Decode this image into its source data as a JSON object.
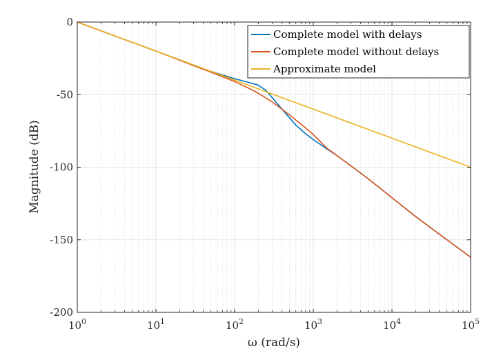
{
  "chart_data": {
    "type": "line",
    "xscale": "log",
    "xlim": [
      1,
      100000
    ],
    "ylim": [
      -200,
      0
    ],
    "grid": true,
    "minor_grid": true,
    "legend_position": "top-right",
    "xlabel": "ω (rad/s)",
    "ylabel": "Magnitude (dB)",
    "x_ticks": [
      {
        "value": 1,
        "base": "10",
        "exp": "0"
      },
      {
        "value": 10,
        "base": "10",
        "exp": "1"
      },
      {
        "value": 100,
        "base": "10",
        "exp": "2"
      },
      {
        "value": 1000,
        "base": "10",
        "exp": "3"
      },
      {
        "value": 10000,
        "base": "10",
        "exp": "4"
      },
      {
        "value": 100000,
        "base": "10",
        "exp": "5"
      }
    ],
    "y_ticks": [
      {
        "value": 0,
        "label": "0"
      },
      {
        "value": -50,
        "label": "-50"
      },
      {
        "value": -100,
        "label": "-100"
      },
      {
        "value": -150,
        "label": "-150"
      },
      {
        "value": -200,
        "label": "-200"
      }
    ],
    "series": [
      {
        "name": "Complete model with delays",
        "color": "#0072BD",
        "x": [
          1,
          10,
          50,
          100,
          150,
          200,
          250,
          300,
          400,
          500,
          600,
          800,
          1000,
          1500,
          2000,
          3000,
          5000,
          10000,
          20000,
          50000,
          100000
        ],
        "y": [
          0,
          -20,
          -34,
          -39,
          -41.5,
          -43.5,
          -47,
          -52,
          -60,
          -66,
          -71,
          -77,
          -81,
          -87.5,
          -92,
          -99,
          -108,
          -121,
          -134,
          -150,
          -162
        ]
      },
      {
        "name": "Complete model without delays",
        "color": "#D95319",
        "x": [
          1,
          10,
          30,
          50,
          100,
          150,
          200,
          300,
          500,
          800,
          1000,
          1500,
          2000,
          3000,
          5000,
          10000,
          20000,
          50000,
          100000
        ],
        "y": [
          0,
          -20,
          -30,
          -34.5,
          -41,
          -45.5,
          -49,
          -55,
          -64,
          -73,
          -77.5,
          -87,
          -92,
          -99,
          -108,
          -121,
          -134,
          -150,
          -162
        ]
      },
      {
        "name": "Approximate model",
        "color": "#EDB120",
        "x": [
          1,
          100000
        ],
        "y": [
          0,
          -100
        ]
      }
    ]
  }
}
